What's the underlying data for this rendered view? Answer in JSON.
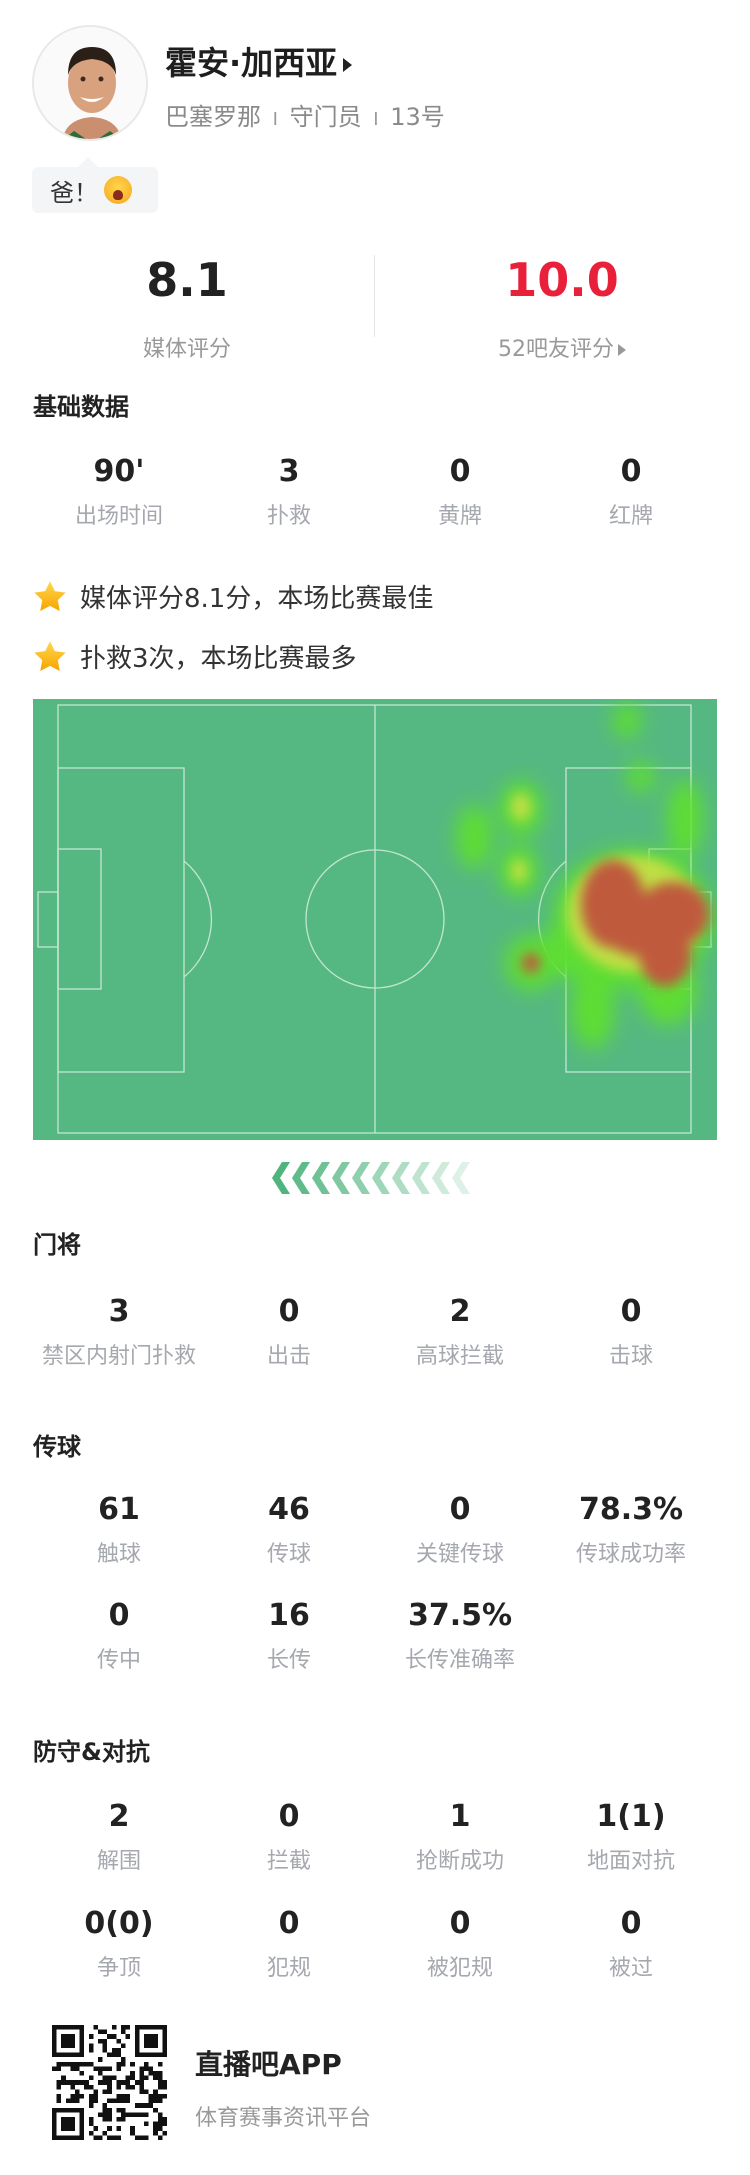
{
  "player": {
    "name": "霍安·加西亚",
    "team": "巴塞罗那",
    "position": "守门员",
    "number": "13号",
    "separator": "I",
    "comment": "爸！",
    "comment_emoji": "loudly-crying-face"
  },
  "ratings": {
    "media": {
      "value": "8.1",
      "label": "媒体评分"
    },
    "fans": {
      "value": "10.0",
      "label": "52吧友评分",
      "color": "#e8203a"
    }
  },
  "basic": {
    "title": "基础数据",
    "stats": [
      {
        "value": "90'",
        "label": "出场时间"
      },
      {
        "value": "3",
        "label": "扑救"
      },
      {
        "value": "0",
        "label": "黄牌"
      },
      {
        "value": "0",
        "label": "红牌"
      }
    ]
  },
  "highlights": [
    {
      "icon": "star-icon",
      "text": "媒体评分8.1分，本场比赛最佳"
    },
    {
      "icon": "star-icon",
      "text": "扑救3次，本场比赛最多"
    }
  ],
  "heatmap": {
    "pitch_color": "#55b882",
    "attack_direction": "left"
  },
  "goalkeeping": {
    "title": "门将",
    "stats": [
      {
        "value": "3",
        "label": "禁区内射门扑救"
      },
      {
        "value": "0",
        "label": "出击"
      },
      {
        "value": "2",
        "label": "高球拦截"
      },
      {
        "value": "0",
        "label": "击球"
      }
    ]
  },
  "passing": {
    "title": "传球",
    "stats": [
      {
        "value": "61",
        "label": "触球"
      },
      {
        "value": "46",
        "label": "传球"
      },
      {
        "value": "0",
        "label": "关键传球"
      },
      {
        "value": "78.3%",
        "label": "传球成功率"
      },
      {
        "value": "0",
        "label": "传中"
      },
      {
        "value": "16",
        "label": "长传"
      },
      {
        "value": "37.5%",
        "label": "长传准确率"
      }
    ]
  },
  "defense": {
    "title": "防守&对抗",
    "stats": [
      {
        "value": "2",
        "label": "解围"
      },
      {
        "value": "0",
        "label": "拦截"
      },
      {
        "value": "1",
        "label": "抢断成功"
      },
      {
        "value": "1(1)",
        "label": "地面对抗"
      },
      {
        "value": "0(0)",
        "label": "争顶"
      },
      {
        "value": "0",
        "label": "犯规"
      },
      {
        "value": "0",
        "label": "被犯规"
      },
      {
        "value": "0",
        "label": "被过"
      }
    ]
  },
  "footer": {
    "app_name": "直播吧APP",
    "slogan": "体育赛事资讯平台"
  }
}
